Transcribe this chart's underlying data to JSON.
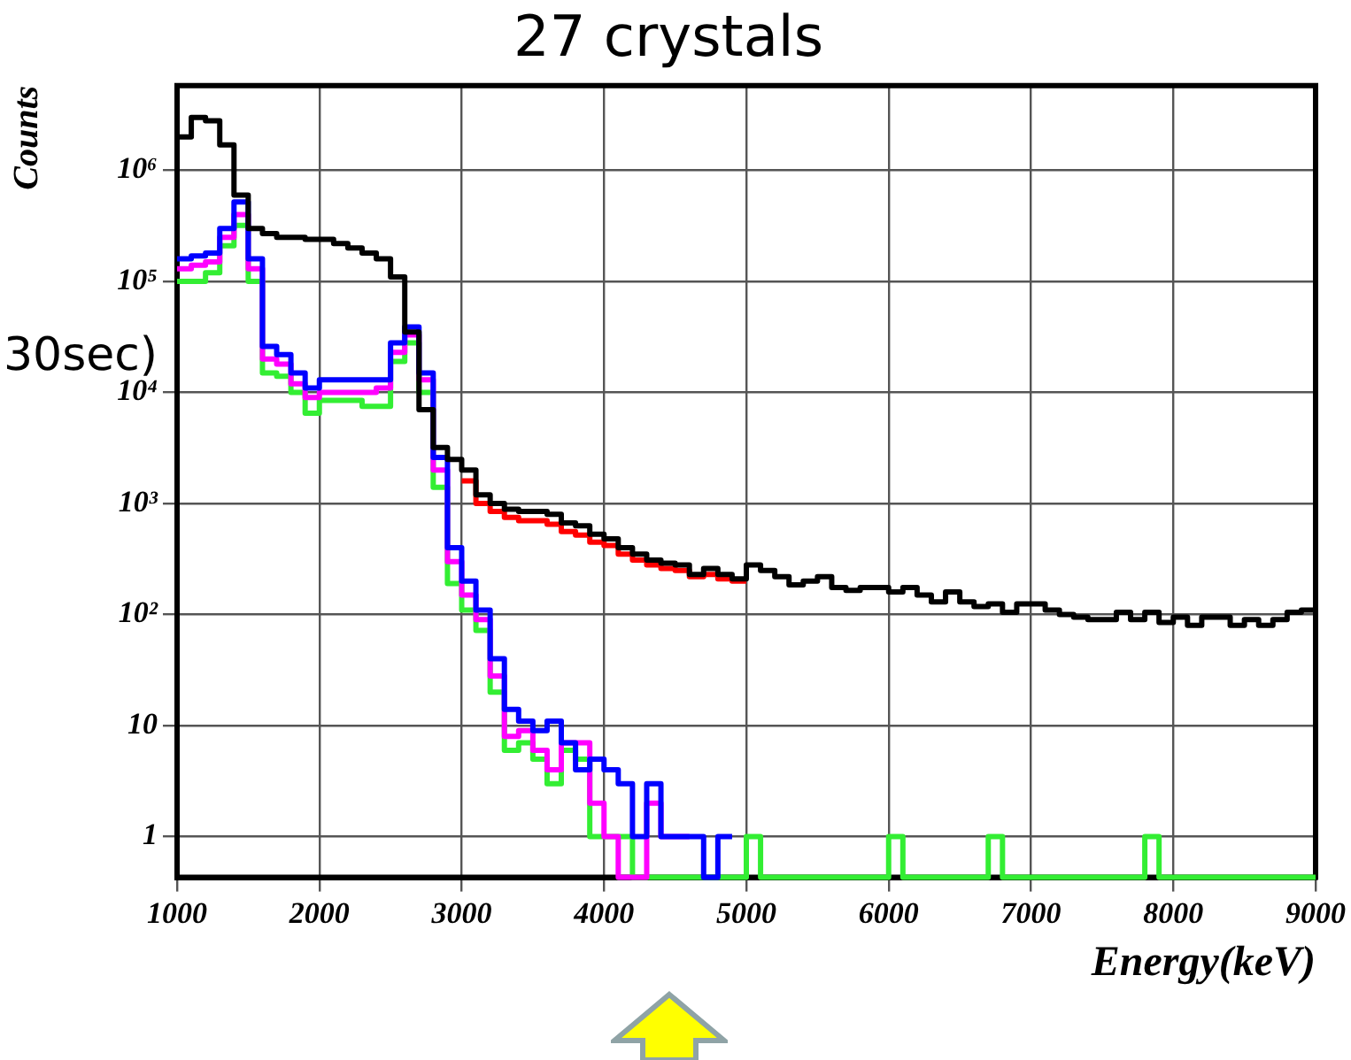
{
  "chart_data": {
    "type": "histogram",
    "title": "27 crystals",
    "xlabel": "Energy(keV)",
    "ylabel": "Counts",
    "annotations": [
      "30sec)"
    ],
    "bins": [
      1000,
      1100,
      1200,
      1300,
      1400,
      1500,
      1600,
      1700,
      1800,
      1900,
      2000,
      2100,
      2200,
      2300,
      2400,
      2500,
      2600,
      2700,
      2800,
      2900,
      3000,
      3100,
      3200,
      3300,
      3400,
      3500,
      3600,
      3700,
      3800,
      3900,
      4000,
      4100,
      4200,
      4300,
      4400,
      4500,
      4600,
      4700,
      4800,
      4900,
      5000,
      5100,
      5200,
      5300,
      5400,
      5500,
      5600,
      5700,
      5800,
      5900,
      6000,
      6100,
      6200,
      6300,
      6400,
      6500,
      6600,
      6700,
      6800,
      6900,
      7000,
      7100,
      7200,
      7300,
      7400,
      7500,
      7600,
      7700,
      7800,
      7900,
      8000,
      8100,
      8200,
      8300,
      8400,
      8500,
      8600,
      8700,
      8800,
      8900,
      9000
    ],
    "series": [
      {
        "color": "#000000",
        "values": [
          2000000,
          3000000,
          2800000,
          1700000,
          600000,
          300000,
          270000,
          250000,
          250000,
          240000,
          240000,
          220000,
          200000,
          180000,
          160000,
          110000,
          35000,
          7000,
          3200,
          2500,
          2000,
          1200,
          1000,
          890,
          850,
          850,
          800,
          670,
          630,
          530,
          480,
          400,
          350,
          310,
          290,
          280,
          230,
          260,
          230,
          210,
          280,
          250,
          220,
          185,
          200,
          220,
          175,
          165,
          175,
          175,
          160,
          175,
          150,
          130,
          160,
          130,
          118,
          125,
          105,
          125,
          125,
          110,
          100,
          95,
          90,
          90,
          105,
          90,
          105,
          85,
          95,
          80,
          95,
          95,
          80,
          90,
          80,
          90,
          105,
          110
        ]
      },
      {
        "color": "#ff0000",
        "bins": [
          3000,
          3100,
          3200,
          3300,
          3400,
          3500,
          3600,
          3700,
          3800,
          3900,
          4000,
          4100,
          4200,
          4300,
          4400,
          4500,
          4600,
          4700,
          4800,
          4900,
          5000
        ],
        "values": [
          1600,
          1000,
          850,
          750,
          700,
          700,
          650,
          560,
          520,
          450,
          420,
          350,
          310,
          280,
          260,
          250,
          220,
          230,
          210,
          200
        ]
      },
      {
        "color": "#0000ff",
        "bins": [
          1000,
          1100,
          1200,
          1300,
          1400,
          1500,
          1600,
          1700,
          1800,
          1900,
          2000,
          2100,
          2200,
          2300,
          2400,
          2500,
          2600,
          2700,
          2800,
          2900,
          3000,
          3100,
          3200,
          3300,
          3400,
          3500,
          3600,
          3700,
          3800,
          3900,
          4000,
          4100,
          4200,
          4300,
          4400,
          4500,
          4600,
          4700,
          4800,
          4900
        ],
        "values": [
          160000,
          170000,
          180000,
          300000,
          520000,
          160000,
          26000,
          22000,
          15000,
          11000,
          13000,
          13000,
          13000,
          13000,
          13000,
          28000,
          39000,
          15000,
          2600,
          400,
          200,
          110,
          40,
          14,
          11,
          9,
          11,
          7,
          4,
          5,
          4,
          3,
          1,
          3,
          1,
          1,
          1,
          null,
          1
        ]
      },
      {
        "color": "#ff00ff",
        "bins": [
          1000,
          1100,
          1200,
          1300,
          1400,
          1500,
          1600,
          1700,
          1800,
          1900,
          2000,
          2100,
          2200,
          2300,
          2400,
          2500,
          2600,
          2700,
          2800,
          2900,
          3000,
          3100,
          3200,
          3300,
          3400,
          3500,
          3600,
          3700,
          3800,
          3900,
          4000,
          4100,
          4200,
          4300,
          4400,
          4500,
          4600
        ],
        "values": [
          130000,
          140000,
          150000,
          250000,
          400000,
          130000,
          20000,
          18000,
          12000,
          9000,
          10000,
          10000,
          10000,
          10000,
          11000,
          23000,
          33000,
          13000,
          2000,
          300,
          150,
          90,
          28,
          8,
          9,
          6,
          4,
          7,
          7,
          2,
          1,
          null,
          null,
          2,
          1,
          1
        ]
      },
      {
        "color": "#33ee33",
        "values": [
          100000,
          100000,
          120000,
          210000,
          320000,
          100000,
          15000,
          14000,
          10000,
          6500,
          8500,
          8500,
          8500,
          7500,
          7500,
          19000,
          28000,
          10000,
          1400,
          190,
          110,
          72,
          20,
          6,
          7,
          5,
          3,
          6,
          5,
          1,
          1,
          1,
          null,
          null,
          null,
          null,
          null,
          null,
          null,
          null,
          1,
          null,
          null,
          null,
          null,
          null,
          null,
          null,
          null,
          null,
          1,
          null,
          null,
          null,
          null,
          null,
          null,
          1,
          null,
          null,
          null,
          null,
          null,
          null,
          null,
          null,
          null,
          null,
          1,
          null,
          null,
          null,
          null,
          null,
          null,
          null,
          null,
          null,
          null,
          null
        ]
      }
    ],
    "xlim": [
      1000,
      9000
    ],
    "xticks": [
      1000,
      2000,
      3000,
      4000,
      5000,
      6000,
      7000,
      8000,
      9000
    ],
    "ylim": [
      0.43,
      5800000
    ],
    "yticks": [
      1,
      10,
      {
        "value": 100,
        "label": "10²"
      },
      {
        "value": 1000,
        "label": "10³"
      },
      {
        "value": 10000,
        "label": "10⁴"
      },
      {
        "value": 100000,
        "label": "10⁵"
      },
      {
        "value": 1000000,
        "label": "10⁶"
      }
    ],
    "log": true,
    "grid": true,
    "legend": false
  }
}
